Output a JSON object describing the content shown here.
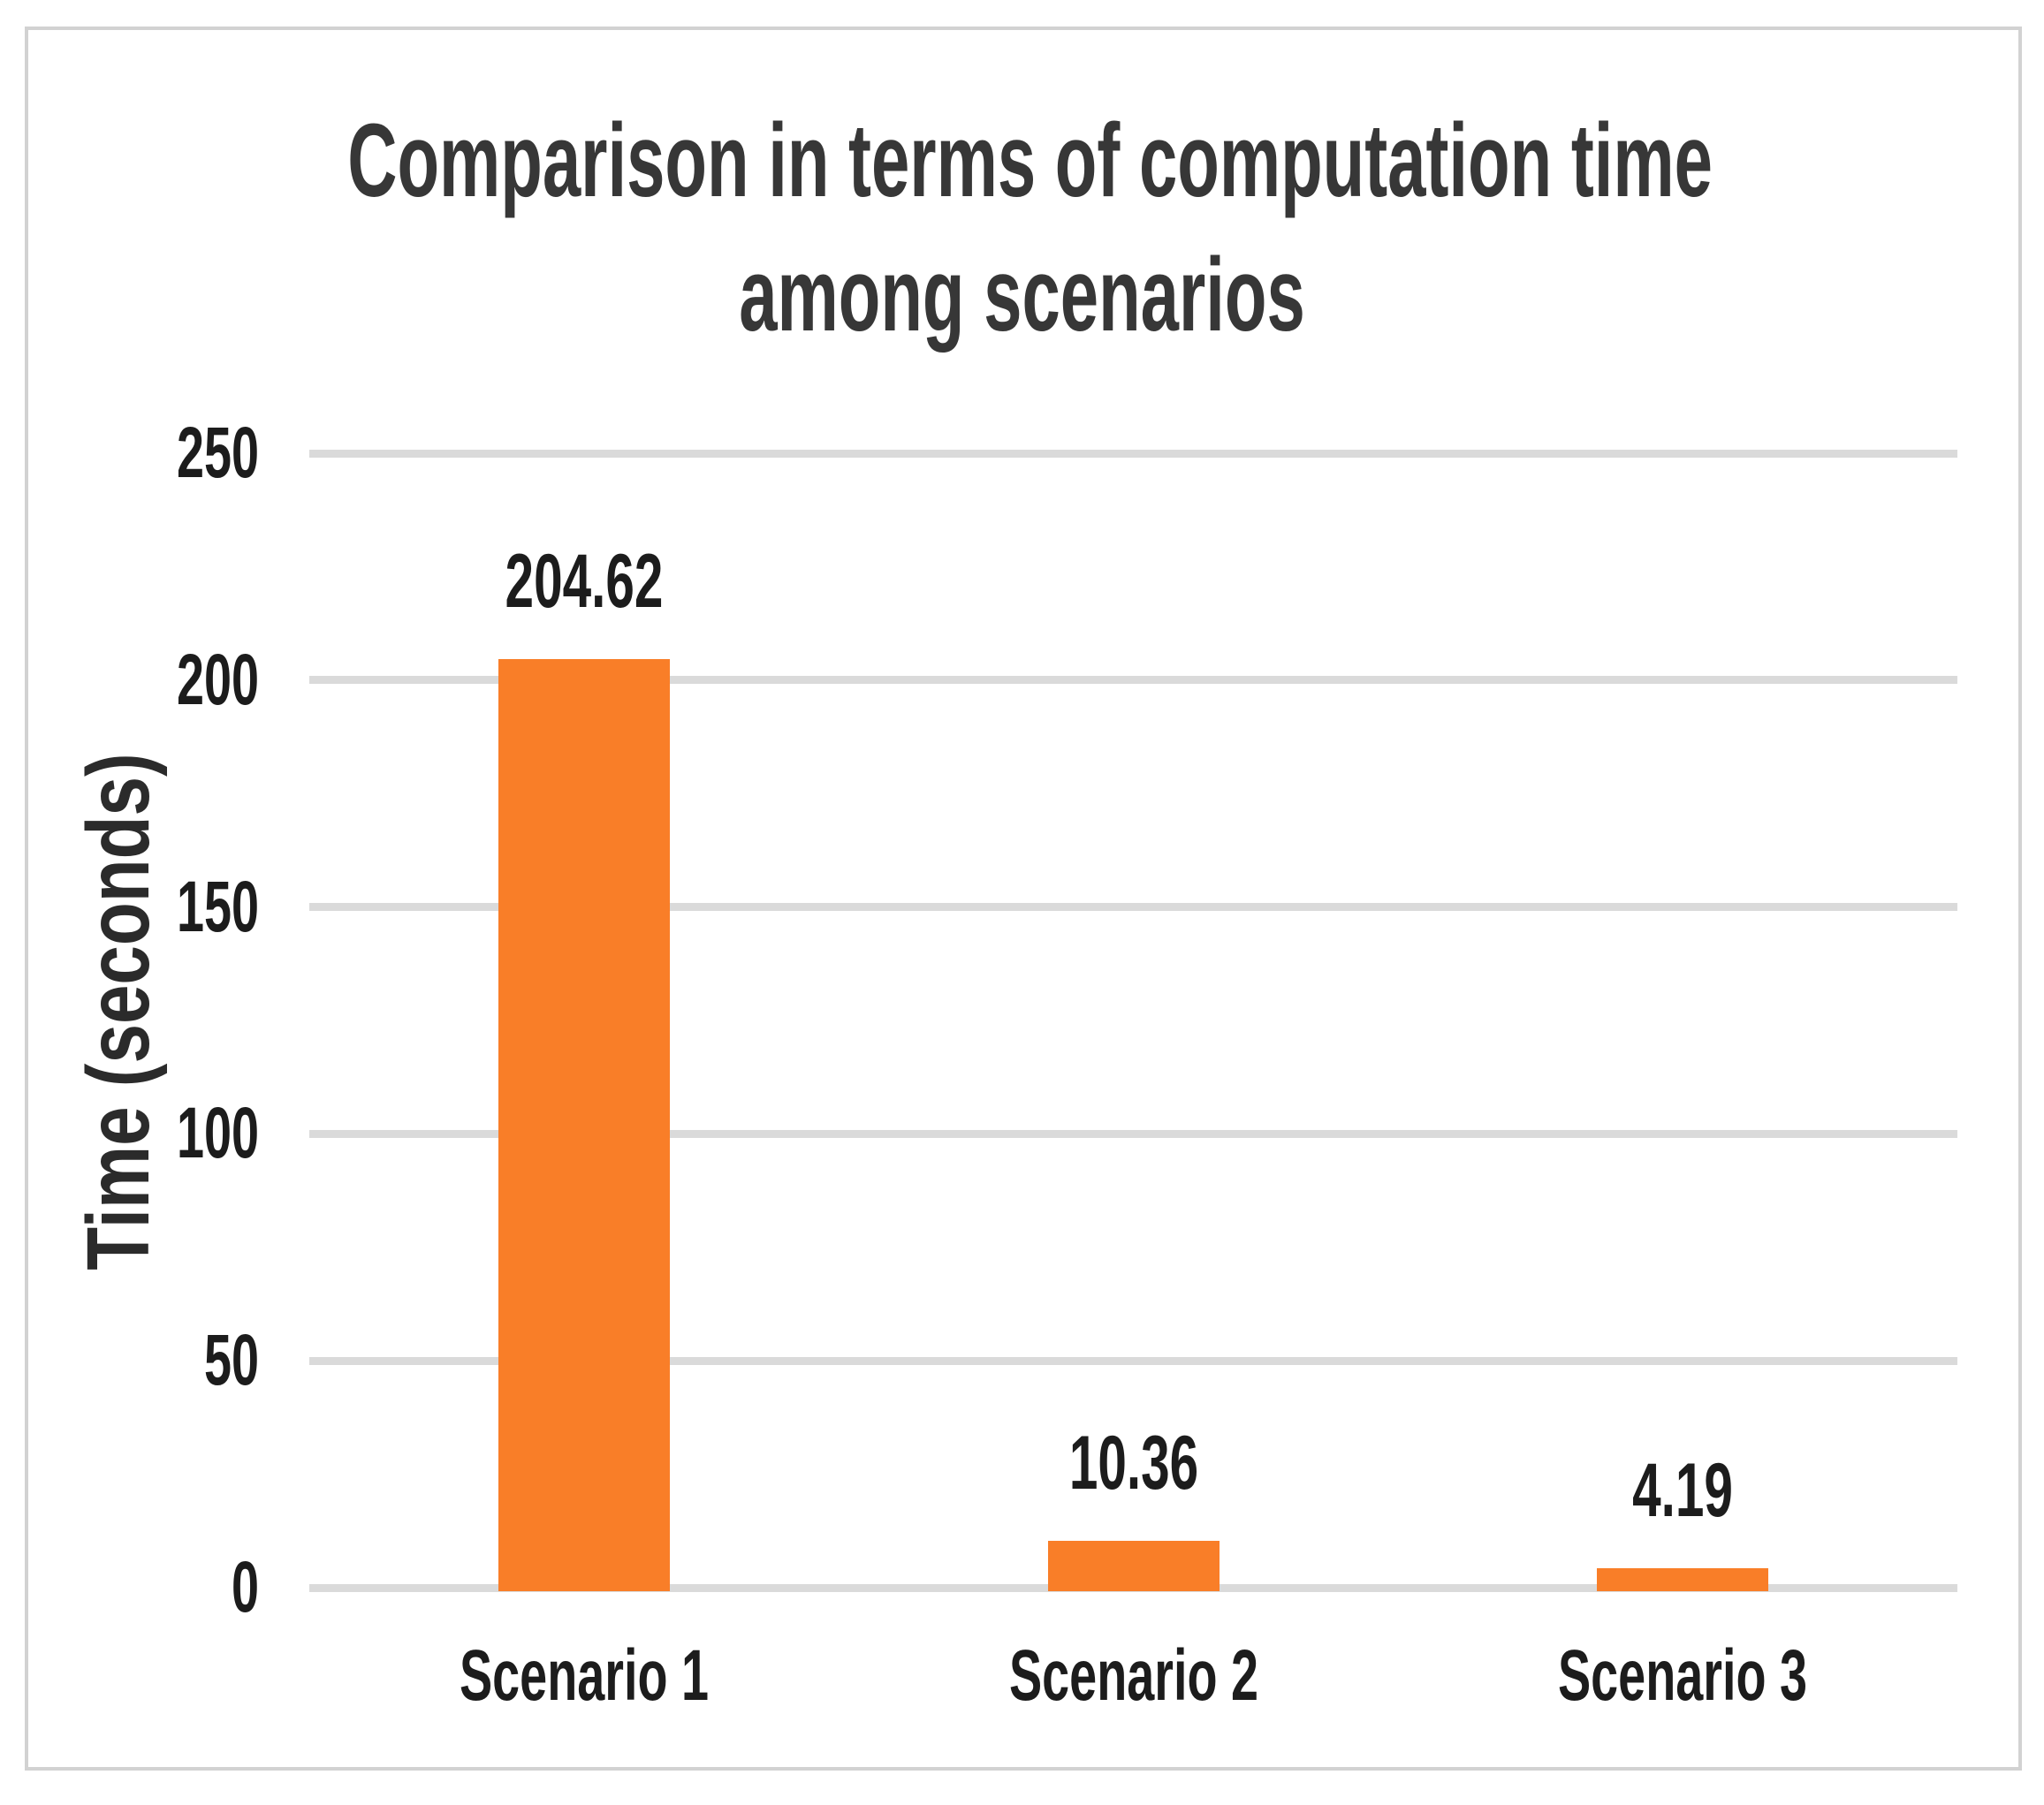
{
  "chart_data": {
    "type": "bar",
    "title": "Comparison in terms of computation time among scenarios",
    "title_lines": [
      "Comparison in terms of computation time",
      "among scenarios"
    ],
    "categories": [
      "Scenario 1",
      "Scenario 2",
      "Scenario 3"
    ],
    "values": [
      204.62,
      10.36,
      4.19
    ],
    "data_labels": [
      "204.62",
      "10.36",
      "4.19"
    ],
    "xlabel": "",
    "ylabel": "Time (seconds)",
    "ylim": [
      0,
      250
    ],
    "yticks": [
      "0",
      "50",
      "100",
      "150",
      "200",
      "250"
    ],
    "ytick_values": [
      0,
      50,
      100,
      150,
      200,
      250
    ],
    "grid": true,
    "legend": false,
    "series_name": "Time",
    "bar_color": "#F97E28",
    "gridline_color": "#DADADA",
    "text_color": "#1C1C1C",
    "title_color": "#373737",
    "frame_border_color": "#D2D2D2"
  }
}
